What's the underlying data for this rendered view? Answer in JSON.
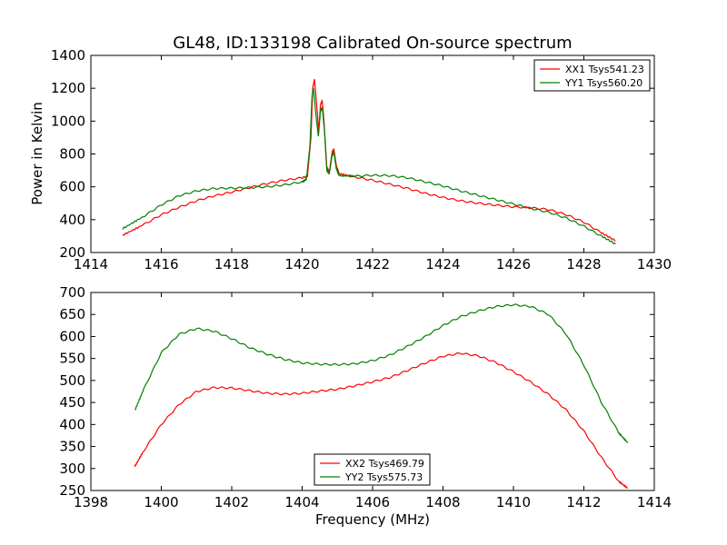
{
  "figure": {
    "title": "GL48, ID:133198 Calibrated On-source spectrum",
    "ylabel": "Power in Kelvin",
    "xlabel": "Frequency (MHz)"
  },
  "chart_data": [
    {
      "type": "line",
      "title": "GL48, ID:133198 Calibrated On-source spectrum",
      "ylabel": "Power in Kelvin",
      "xlabel": "",
      "xlim": [
        1414,
        1430
      ],
      "ylim": [
        200,
        1400
      ],
      "xticks": [
        "1414",
        "1416",
        "1418",
        "1420",
        "1422",
        "1424",
        "1426",
        "1428",
        "1430"
      ],
      "yticks": [
        "200",
        "400",
        "600",
        "800",
        "1000",
        "1200",
        "1400"
      ],
      "grid": false,
      "legend_position": "top-right",
      "series": [
        {
          "name": "XX1 Tsys541.23",
          "color": "#ff0000",
          "points": [
            [
              1414.9,
              305
            ],
            [
              1415.5,
              370
            ],
            [
              1416,
              430
            ],
            [
              1416.5,
              475
            ],
            [
              1417,
              515
            ],
            [
              1417.5,
              545
            ],
            [
              1418,
              568
            ],
            [
              1418.5,
              595
            ],
            [
              1419,
              620
            ],
            [
              1419.5,
              640
            ],
            [
              1420,
              655
            ],
            [
              1420.15,
              665
            ],
            [
              1420.25,
              900
            ],
            [
              1420.3,
              1200
            ],
            [
              1420.35,
              1255
            ],
            [
              1420.42,
              1080
            ],
            [
              1420.47,
              940
            ],
            [
              1420.52,
              1100
            ],
            [
              1420.57,
              1125
            ],
            [
              1420.62,
              1000
            ],
            [
              1420.7,
              720
            ],
            [
              1420.77,
              690
            ],
            [
              1420.85,
              810
            ],
            [
              1420.9,
              830
            ],
            [
              1420.97,
              730
            ],
            [
              1421.05,
              680
            ],
            [
              1421.5,
              660
            ],
            [
              1422,
              640
            ],
            [
              1422.5,
              615
            ],
            [
              1423,
              590
            ],
            [
              1423.5,
              560
            ],
            [
              1424,
              535
            ],
            [
              1424.5,
              515
            ],
            [
              1425,
              500
            ],
            [
              1425.5,
              488
            ],
            [
              1426,
              478
            ],
            [
              1426.5,
              472
            ],
            [
              1427,
              462
            ],
            [
              1427.5,
              430
            ],
            [
              1428,
              385
            ],
            [
              1428.5,
              320
            ],
            [
              1428.9,
              272
            ]
          ]
        },
        {
          "name": "YY1 Tsys560.20",
          "color": "#008000",
          "points": [
            [
              1414.9,
              345
            ],
            [
              1415.5,
              420
            ],
            [
              1416,
              490
            ],
            [
              1416.5,
              545
            ],
            [
              1417,
              575
            ],
            [
              1417.5,
              590
            ],
            [
              1418,
              592
            ],
            [
              1418.5,
              595
            ],
            [
              1419,
              600
            ],
            [
              1419.5,
              612
            ],
            [
              1420,
              630
            ],
            [
              1420.12,
              645
            ],
            [
              1420.22,
              850
            ],
            [
              1420.28,
              1150
            ],
            [
              1420.32,
              1200
            ],
            [
              1420.4,
              1020
            ],
            [
              1420.46,
              905
            ],
            [
              1420.52,
              1060
            ],
            [
              1420.57,
              1085
            ],
            [
              1420.63,
              950
            ],
            [
              1420.7,
              700
            ],
            [
              1420.77,
              680
            ],
            [
              1420.85,
              790
            ],
            [
              1420.9,
              810
            ],
            [
              1420.97,
              710
            ],
            [
              1421.05,
              668
            ],
            [
              1421.5,
              665
            ],
            [
              1422,
              670
            ],
            [
              1422.5,
              668
            ],
            [
              1423,
              655
            ],
            [
              1423.5,
              630
            ],
            [
              1424,
              605
            ],
            [
              1424.5,
              575
            ],
            [
              1425,
              548
            ],
            [
              1425.5,
              522
            ],
            [
              1426,
              495
            ],
            [
              1426.5,
              468
            ],
            [
              1427,
              445
            ],
            [
              1427.5,
              410
            ],
            [
              1428,
              360
            ],
            [
              1428.5,
              300
            ],
            [
              1428.9,
              252
            ]
          ]
        }
      ]
    },
    {
      "type": "line",
      "title": "",
      "ylabel": "",
      "xlabel": "Frequency (MHz)",
      "xlim": [
        1398,
        1414
      ],
      "ylim": [
        250,
        700
      ],
      "xticks": [
        "1398",
        "1400",
        "1402",
        "1404",
        "1406",
        "1408",
        "1410",
        "1412",
        "1414"
      ],
      "yticks": [
        "250",
        "300",
        "350",
        "400",
        "450",
        "500",
        "550",
        "600",
        "650",
        "700"
      ],
      "grid": false,
      "legend_position": "bottom-center",
      "series": [
        {
          "name": "XX2 Tsys469.79",
          "color": "#ff0000",
          "points": [
            [
              1399.25,
              305
            ],
            [
              1399.5,
              340
            ],
            [
              1400,
              400
            ],
            [
              1400.5,
              445
            ],
            [
              1401,
              475
            ],
            [
              1401.5,
              484
            ],
            [
              1402,
              483
            ],
            [
              1402.5,
              477
            ],
            [
              1403,
              471
            ],
            [
              1403.5,
              469
            ],
            [
              1404,
              471
            ],
            [
              1404.5,
              476
            ],
            [
              1405,
              480
            ],
            [
              1405.5,
              488
            ],
            [
              1406,
              497
            ],
            [
              1406.5,
              507
            ],
            [
              1407,
              523
            ],
            [
              1407.5,
              540
            ],
            [
              1408,
              555
            ],
            [
              1408.5,
              562
            ],
            [
              1409,
              556
            ],
            [
              1409.5,
              541
            ],
            [
              1410,
              520
            ],
            [
              1410.5,
              496
            ],
            [
              1411,
              468
            ],
            [
              1411.5,
              433
            ],
            [
              1412,
              385
            ],
            [
              1412.5,
              325
            ],
            [
              1413,
              270
            ],
            [
              1413.25,
              255
            ]
          ]
        },
        {
          "name": "YY2 Tsys575.73",
          "color": "#008000",
          "points": [
            [
              1399.25,
              432
            ],
            [
              1399.5,
              480
            ],
            [
              1400,
              563
            ],
            [
              1400.5,
              605
            ],
            [
              1401,
              618
            ],
            [
              1401.5,
              612
            ],
            [
              1402,
              595
            ],
            [
              1402.5,
              575
            ],
            [
              1403,
              560
            ],
            [
              1403.5,
              548
            ],
            [
              1404,
              540
            ],
            [
              1404.5,
              537
            ],
            [
              1405,
              536
            ],
            [
              1405.5,
              538
            ],
            [
              1406,
              545
            ],
            [
              1406.5,
              558
            ],
            [
              1407,
              578
            ],
            [
              1407.5,
              600
            ],
            [
              1408,
              625
            ],
            [
              1408.5,
              645
            ],
            [
              1409,
              658
            ],
            [
              1409.5,
              668
            ],
            [
              1410,
              672
            ],
            [
              1410.5,
              668
            ],
            [
              1411,
              650
            ],
            [
              1411.5,
              605
            ],
            [
              1412,
              535
            ],
            [
              1412.5,
              450
            ],
            [
              1413,
              380
            ],
            [
              1413.25,
              358
            ]
          ]
        }
      ]
    }
  ]
}
